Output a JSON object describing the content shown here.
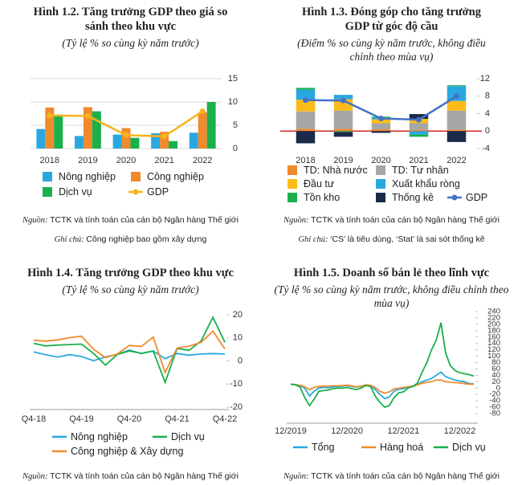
{
  "chart_data": [
    {
      "type": "bar",
      "title": "Hình 1.2. Tăng trưởng GDP theo giá so sánh theo khu vực",
      "subtitle": "(Tỷ lệ % so cùng kỳ năm trước)",
      "categories": [
        "2018",
        "2019",
        "2020",
        "2021",
        "2022"
      ],
      "series": [
        {
          "name": "Nông nghiệp",
          "color": "#29a8e0",
          "values": [
            4.2,
            2.7,
            3.0,
            3.3,
            3.4
          ]
        },
        {
          "name": "Công nghiệp",
          "color": "#f08a2c",
          "values": [
            8.8,
            8.9,
            4.4,
            3.6,
            7.8
          ]
        },
        {
          "name": "Dịch vụ",
          "color": "#1ab04b",
          "values": [
            7.0,
            8.0,
            2.3,
            1.6,
            10.0
          ]
        },
        {
          "name": "GDP",
          "color": "#f5b51b",
          "type": "line",
          "values": [
            7.1,
            7.0,
            2.9,
            2.6,
            8.0
          ]
        }
      ],
      "ylim": [
        0,
        15
      ],
      "yticks": [
        0,
        5,
        10,
        15
      ],
      "grid": true,
      "source_label": "Nguồn:",
      "source": "TCTK và tính toán của cán bộ Ngân hàng Thế giới",
      "note_label": "Ghi chú:",
      "note": "Công nghiệp bao gồm xây dựng"
    },
    {
      "type": "stacked_bar",
      "title": "Hình 1.3. Đóng góp cho tăng trưởng GDP từ góc độ cầu",
      "subtitle": "(Điểm % so cùng kỳ năm trước, không điều chỉnh theo mùa vụ)",
      "categories": [
        "2018",
        "2019",
        "2020",
        "2021",
        "2022"
      ],
      "series": [
        {
          "name": "TD: Nhà nước",
          "color": "#f08a2c",
          "values": [
            0.5,
            0.5,
            0.4,
            0.3,
            0.3
          ]
        },
        {
          "name": "TD: Tư nhân",
          "color": "#a6a6a6",
          "values": [
            4.0,
            4.2,
            1.4,
            1.5,
            4.4
          ]
        },
        {
          "name": "Đầu tư",
          "color": "#fbbc1a",
          "values": [
            2.7,
            2.6,
            0.9,
            1.0,
            2.2
          ]
        },
        {
          "name": "Xuất khẩu ròng",
          "color": "#29a8e0",
          "values": [
            2.3,
            1.0,
            0.4,
            -0.8,
            3.4
          ]
        },
        {
          "name": "Tồn kho",
          "color": "#1ab04b",
          "values": [
            0.4,
            -0.2,
            0.2,
            -0.5,
            0.2
          ]
        },
        {
          "name": "Thống kê",
          "color": "#1b2a4a",
          "values": [
            -2.8,
            -1.1,
            -0.4,
            1.1,
            -2.5
          ]
        },
        {
          "name": "GDP",
          "color": "#4472c4",
          "type": "line",
          "values": [
            7.1,
            7.0,
            2.9,
            2.6,
            8.0
          ]
        }
      ],
      "ylim": [
        -4,
        12
      ],
      "yticks": [
        -4,
        0,
        4,
        8,
        12
      ],
      "grid": false,
      "zero_line_color": "#d62728",
      "source_label": "Nguồn:",
      "source": "TCTK và tính toán của cán bộ Ngân hàng Thế giới",
      "note_label": "Ghi chú:",
      "note": "‘CS’ là tiêu dùng, ‘Stat’ là sai sót thống kê"
    },
    {
      "type": "line",
      "title": "Hình 1.4. Tăng trưởng GDP theo khu vực",
      "subtitle": "(Tỷ lệ % so cùng kỳ năm trước)",
      "categories": [
        "Q4-18",
        null,
        null,
        null,
        "Q4-19",
        null,
        null,
        null,
        "Q4-20",
        null,
        null,
        null,
        "Q4-21",
        null,
        null,
        null,
        "Q4-22"
      ],
      "series": [
        {
          "name": "Nông nghiệp",
          "color": "#29a8e0",
          "values": [
            3.9,
            2.7,
            1.7,
            2.7,
            1.9,
            0.1,
            1.7,
            2.9,
            4.7,
            3.2,
            4.3,
            1.0,
            3.2,
            2.5,
            3.0,
            3.2,
            3.0
          ]
        },
        {
          "name": "Dịch vụ",
          "color": "#1ab04b",
          "values": [
            7.6,
            6.5,
            6.9,
            7.1,
            7.3,
            3.3,
            -1.8,
            2.8,
            4.3,
            3.3,
            4.3,
            -9.3,
            5.4,
            4.6,
            8.6,
            18.9,
            8.1
          ]
        },
        {
          "name": "Công nghiệp & Xây dựng",
          "color": "#f08a2c",
          "values": [
            9.0,
            8.6,
            9.1,
            10.1,
            10.7,
            5.1,
            1.4,
            3.0,
            6.7,
            6.3,
            10.3,
            -5.0,
            5.6,
            6.4,
            8.0,
            12.9,
            5.2
          ]
        }
      ],
      "ylim": [
        -20,
        20
      ],
      "yticks": [
        -20,
        -10,
        0,
        10,
        20
      ],
      "grid": false,
      "source_label": "Nguồn:",
      "source": "TCTK và tính toán của cán bộ Ngân hàng Thế giới"
    },
    {
      "type": "line",
      "title": "Hình 1.5. Doanh số bán lẻ theo lĩnh vực",
      "subtitle": "(Tỷ lệ % so cùng kỳ năm trước, không điều chỉnh theo mùa vụ)",
      "categories": [
        "12/2019",
        null,
        null,
        null,
        null,
        null,
        null,
        null,
        null,
        null,
        null,
        null,
        "12/2020",
        null,
        null,
        null,
        null,
        null,
        null,
        null,
        null,
        null,
        null,
        null,
        "12/2021",
        null,
        null,
        null,
        null,
        null,
        null,
        null,
        null,
        null,
        null,
        null,
        "12/2022",
        null,
        null,
        null
      ],
      "series": [
        {
          "name": "Tổng",
          "color": "#29a8e0",
          "values": [
            12,
            11,
            8,
            0,
            -25,
            -10,
            0,
            2,
            1,
            4,
            5,
            6,
            8,
            5,
            3,
            5,
            10,
            8,
            -5,
            -20,
            -33,
            -28,
            -10,
            -4,
            -2,
            3,
            5,
            10,
            20,
            25,
            30,
            40,
            50,
            36,
            30,
            25,
            22,
            20,
            14,
            13
          ]
        },
        {
          "name": "Hàng hoá",
          "color": "#f08a2c",
          "values": [
            12,
            11,
            9,
            4,
            -5,
            2,
            5,
            6,
            6,
            7,
            7,
            8,
            9,
            7,
            4,
            6,
            10,
            9,
            2,
            -10,
            -16,
            -12,
            -3,
            -1,
            2,
            4,
            6,
            10,
            15,
            18,
            20,
            25,
            25,
            20,
            18,
            17,
            16,
            14,
            12,
            12
          ]
        },
        {
          "name": "Dịch vụ",
          "color": "#1ab04b",
          "values": [
            12,
            10,
            3,
            -30,
            -55,
            -35,
            -10,
            -8,
            -6,
            -2,
            0,
            0,
            2,
            -2,
            -5,
            0,
            8,
            5,
            -25,
            -45,
            -60,
            -55,
            -30,
            -15,
            -12,
            0,
            5,
            15,
            50,
            80,
            120,
            150,
            205,
            110,
            70,
            55,
            48,
            45,
            42,
            38
          ]
        }
      ],
      "ylim": [
        -80,
        240
      ],
      "yticks": [
        -80,
        -60,
        -40,
        -20,
        0,
        20,
        40,
        60,
        80,
        100,
        120,
        140,
        160,
        180,
        200,
        220,
        240
      ],
      "grid": false,
      "source_label": "Nguồn:",
      "source": "TCTK và tính toán của cán bộ Ngân hàng Thế giới"
    }
  ]
}
